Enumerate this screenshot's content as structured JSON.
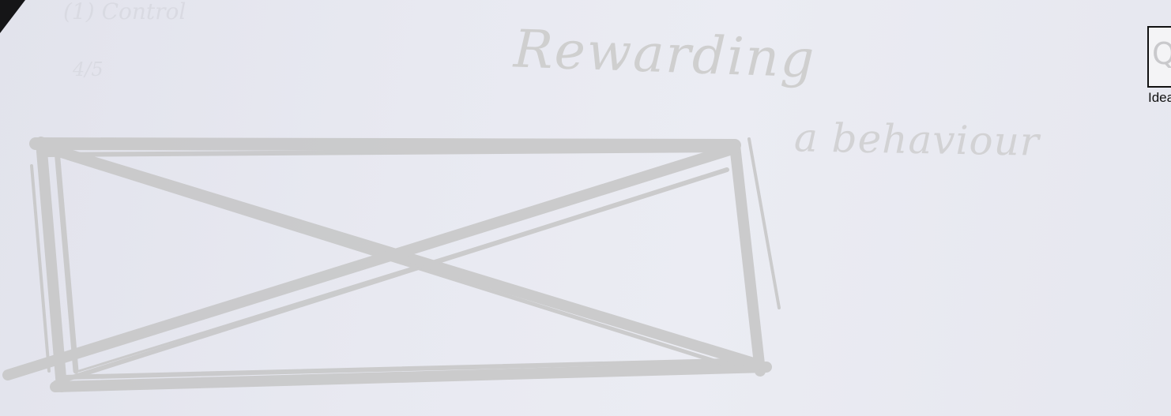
{
  "image": {
    "type": "photo of a hand-drawn sketch on paper",
    "ink_color": "#c8c8c8",
    "paper_color": "#e8e9f0"
  },
  "sketch": {
    "title_line_1": "Rewarding",
    "title_line_2": "a behaviour",
    "placeholder_box": "rectangle crossed by two diagonals (image placeholder)",
    "faint_note_1": "(1)  Control",
    "faint_note_2": "4/5"
  },
  "thumbnail": {
    "glyph": "Q",
    "caption": "Idea"
  }
}
